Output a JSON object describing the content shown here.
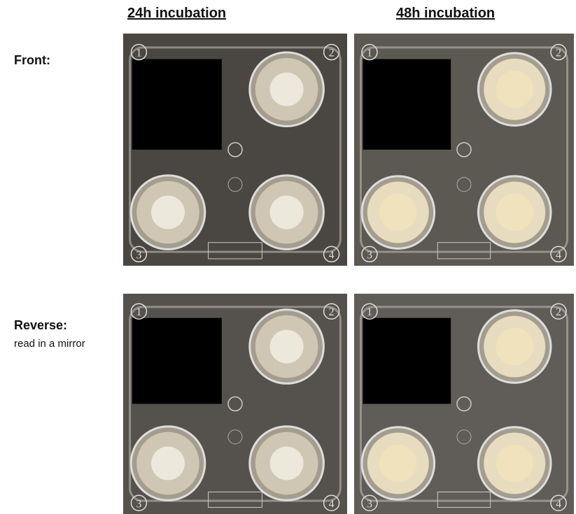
{
  "columns": [
    "24h incubation",
    "48h incubation"
  ],
  "rows": [
    {
      "label": "Front:"
    },
    {
      "label": "Reverse:",
      "note": "read in a mirror"
    }
  ],
  "well_labels": [
    "1",
    "2",
    "3",
    "4"
  ]
}
